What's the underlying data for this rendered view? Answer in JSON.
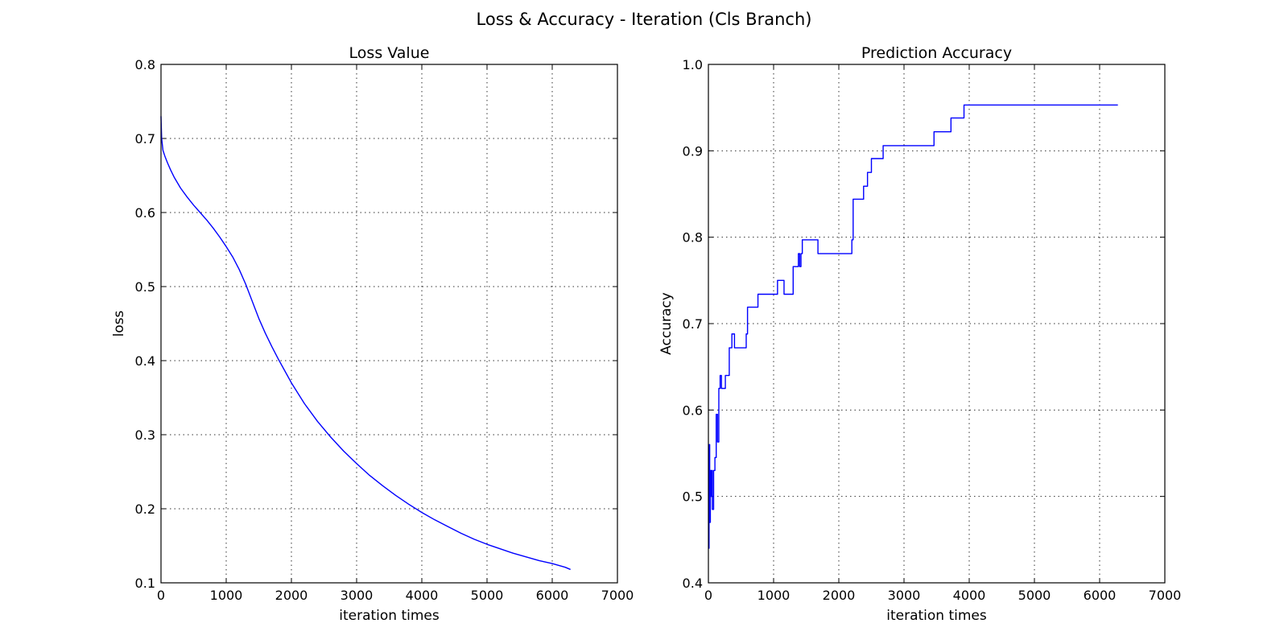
{
  "figure": {
    "title": "Loss & Accuracy - Iteration (Cls Branch)"
  },
  "chart_data": [
    {
      "type": "line",
      "title": "Loss Value",
      "xlabel": "iteration times",
      "ylabel": "loss",
      "xlim": [
        0,
        7000
      ],
      "ylim": [
        0.1,
        0.8
      ],
      "xticks": [
        0,
        1000,
        2000,
        3000,
        4000,
        5000,
        6000,
        7000
      ],
      "yticks": [
        0.1,
        0.2,
        0.3,
        0.4,
        0.5,
        0.6,
        0.7,
        0.8
      ],
      "grid": true,
      "series": [
        {
          "color": "#0000ff",
          "x": [
            0,
            10,
            30,
            60,
            100,
            150,
            200,
            300,
            400,
            500,
            600,
            700,
            800,
            900,
            1000,
            1100,
            1200,
            1300,
            1400,
            1500,
            1600,
            1700,
            1800,
            1900,
            2000,
            2200,
            2400,
            2600,
            2800,
            3000,
            3200,
            3400,
            3600,
            3800,
            4000,
            4200,
            4400,
            4600,
            4800,
            5000,
            5200,
            5400,
            5600,
            5800,
            6000,
            6200,
            6280
          ],
          "y": [
            0.73,
            0.7,
            0.684,
            0.676,
            0.667,
            0.657,
            0.648,
            0.633,
            0.621,
            0.61,
            0.6,
            0.59,
            0.579,
            0.567,
            0.554,
            0.54,
            0.523,
            0.503,
            0.48,
            0.457,
            0.437,
            0.419,
            0.402,
            0.386,
            0.37,
            0.342,
            0.318,
            0.297,
            0.278,
            0.261,
            0.245,
            0.231,
            0.218,
            0.206,
            0.195,
            0.185,
            0.176,
            0.167,
            0.159,
            0.152,
            0.146,
            0.14,
            0.135,
            0.13,
            0.126,
            0.121,
            0.118
          ]
        }
      ]
    },
    {
      "type": "line",
      "title": "Prediction Accuracy",
      "xlabel": "iteration times",
      "ylabel": "Accuracy",
      "xlim": [
        0,
        7000
      ],
      "ylim": [
        0.4,
        1.0
      ],
      "xticks": [
        0,
        1000,
        2000,
        3000,
        4000,
        5000,
        6000,
        7000
      ],
      "yticks": [
        0.4,
        0.5,
        0.6,
        0.7,
        0.8,
        0.9,
        1.0
      ],
      "grid": true,
      "series": [
        {
          "color": "#0000ff",
          "x": [
            0,
            10,
            10,
            20,
            20,
            30,
            30,
            40,
            40,
            50,
            50,
            60,
            60,
            80,
            80,
            100,
            100,
            120,
            120,
            140,
            140,
            160,
            160,
            180,
            180,
            200,
            200,
            260,
            260,
            320,
            320,
            360,
            360,
            400,
            400,
            580,
            580,
            600,
            600,
            760,
            760,
            1060,
            1060,
            1160,
            1160,
            1300,
            1300,
            1380,
            1380,
            1400,
            1400,
            1420,
            1420,
            1440,
            1440,
            1680,
            1680,
            2200,
            2200,
            2220,
            2220,
            2380,
            2380,
            2440,
            2440,
            2500,
            2500,
            2680,
            2680,
            3460,
            3460,
            3720,
            3720,
            3920,
            3920,
            6280
          ],
          "y": [
            0.44,
            0.44,
            0.56,
            0.56,
            0.47,
            0.47,
            0.53,
            0.53,
            0.5,
            0.5,
            0.53,
            0.53,
            0.485,
            0.485,
            0.53,
            0.53,
            0.545,
            0.545,
            0.595,
            0.595,
            0.563,
            0.563,
            0.625,
            0.625,
            0.64,
            0.64,
            0.625,
            0.625,
            0.64,
            0.64,
            0.672,
            0.672,
            0.688,
            0.688,
            0.672,
            0.672,
            0.688,
            0.688,
            0.719,
            0.719,
            0.734,
            0.734,
            0.75,
            0.75,
            0.734,
            0.734,
            0.766,
            0.766,
            0.781,
            0.781,
            0.766,
            0.766,
            0.781,
            0.781,
            0.797,
            0.797,
            0.781,
            0.781,
            0.797,
            0.797,
            0.844,
            0.844,
            0.859,
            0.859,
            0.875,
            0.875,
            0.891,
            0.891,
            0.906,
            0.906,
            0.922,
            0.922,
            0.938,
            0.938,
            0.953,
            0.953
          ]
        }
      ]
    }
  ]
}
